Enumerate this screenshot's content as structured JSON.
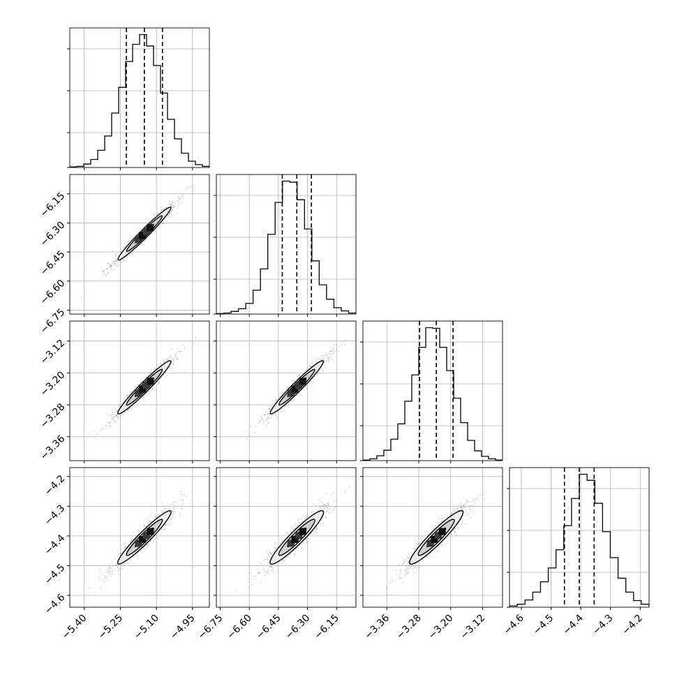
{
  "chart_data": {
    "type": "corner",
    "grid": true,
    "histograms": [
      {
        "param_index": 0,
        "range": [
          -5.46,
          -4.88
        ],
        "quantiles": [
          -5.225,
          -5.15,
          -5.075
        ],
        "bin_values": [
          1,
          2,
          6,
          14,
          30,
          55,
          95,
          140,
          185,
          215,
          232,
          212,
          178,
          130,
          84,
          50,
          25,
          11,
          5,
          2
        ]
      },
      {
        "param_index": 1,
        "range": [
          -6.77,
          -6.05
        ],
        "quantiles": [
          -6.43,
          -6.355,
          -6.28
        ],
        "bin_values": [
          1,
          2,
          5,
          10,
          20,
          45,
          85,
          150,
          210,
          250,
          248,
          215,
          160,
          100,
          55,
          28,
          12,
          6,
          2
        ]
      },
      {
        "param_index": 2,
        "range": [
          -3.42,
          -3.07
        ],
        "quantiles": [
          -3.278,
          -3.236,
          -3.194
        ],
        "bin_values": [
          1,
          3,
          8,
          17,
          35,
          60,
          97,
          140,
          185,
          217,
          216,
          185,
          147,
          102,
          62,
          33,
          16,
          7,
          3,
          1
        ]
      },
      {
        "param_index": 3,
        "range": [
          -4.64,
          -4.17
        ],
        "quantiles": [
          -4.455,
          -4.405,
          -4.355
        ],
        "bin_values": [
          2,
          5,
          12,
          25,
          42,
          65,
          95,
          135,
          180,
          220,
          210,
          172,
          125,
          82,
          48,
          25,
          11,
          5
        ]
      }
    ],
    "scatter_panels": [
      {
        "x_param": 0,
        "y_param": 1,
        "center": [
          -5.15,
          -6.355
        ],
        "correlation": 0.985,
        "contour_levels": 3
      },
      {
        "x_param": 0,
        "y_param": 2,
        "center": [
          -5.15,
          -3.236
        ],
        "correlation": 0.98,
        "contour_levels": 3
      },
      {
        "x_param": 1,
        "y_param": 2,
        "center": [
          -6.355,
          -3.236
        ],
        "correlation": 0.98,
        "contour_levels": 3
      },
      {
        "x_param": 0,
        "y_param": 3,
        "center": [
          -5.15,
          -4.405
        ],
        "correlation": 0.97,
        "contour_levels": 3
      },
      {
        "x_param": 1,
        "y_param": 3,
        "center": [
          -6.355,
          -4.405
        ],
        "correlation": 0.96,
        "contour_levels": 3
      },
      {
        "x_param": 2,
        "y_param": 3,
        "center": [
          -3.236,
          -4.405
        ],
        "correlation": 0.96,
        "contour_levels": 3
      }
    ],
    "tick_labels": {
      "x": [
        [
          "−5.40",
          "−5.25",
          "−5.10",
          "−4.95"
        ],
        [
          "−6.75",
          "−6.60",
          "−6.45",
          "−6.30",
          "−6.15"
        ],
        [
          "−3.36",
          "−3.28",
          "−3.20",
          "−3.12"
        ],
        [
          "−4.6",
          "−4.5",
          "−4.4",
          "−4.3",
          "−4.2"
        ]
      ],
      "y": [
        [],
        [
          "−6.15",
          "−6.30",
          "−6.45",
          "−6.60",
          "−6.75"
        ],
        [
          "−3.12",
          "−3.20",
          "−3.28",
          "−3.36"
        ],
        [
          "−4.2",
          "−4.3",
          "−4.4",
          "−4.5",
          "−4.6"
        ]
      ]
    },
    "tick_values": {
      "x": [
        [
          -5.4,
          -5.25,
          -5.1,
          -4.95
        ],
        [
          -6.75,
          -6.6,
          -6.45,
          -6.3,
          -6.15
        ],
        [
          -3.36,
          -3.28,
          -3.2,
          -3.12
        ],
        [
          -4.6,
          -4.5,
          -4.4,
          -4.3,
          -4.2
        ]
      ],
      "y": [
        [],
        [
          -6.15,
          -6.3,
          -6.45,
          -6.6,
          -6.75
        ],
        [
          -3.12,
          -3.2,
          -3.28,
          -3.36
        ],
        [
          -4.2,
          -4.3,
          -4.4,
          -4.5,
          -4.6
        ]
      ]
    },
    "colors": {
      "line": "#000000",
      "grid": "#b0b0b0",
      "points": "#808080"
    }
  }
}
